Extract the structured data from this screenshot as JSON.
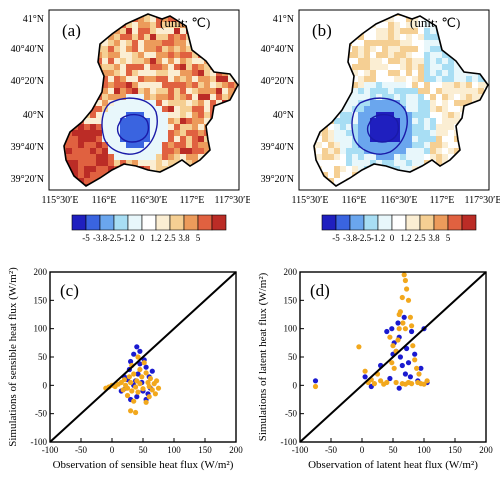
{
  "colors": {
    "palette": [
      "#1f1fbf",
      "#3a64e0",
      "#6aa6ee",
      "#a8def4",
      "#e8f7fb",
      "#ffffff",
      "#fbeed3",
      "#f5cf93",
      "#ec9b5b",
      "#e06140",
      "#bb2c26"
    ],
    "obs_blue": "#1a1ad0",
    "obs_orange": "#f2a81d",
    "contour": "#1a1aa8"
  },
  "panels": {
    "a": {
      "label": "(a)",
      "unit": "(unit: ℃)"
    },
    "b": {
      "label": "(b)",
      "unit": "(unit: ℃)"
    },
    "c": {
      "label": "(c)"
    },
    "d": {
      "label": "(d)"
    }
  },
  "map_axes": {
    "lat_labels": [
      "41°N",
      "40°40′N",
      "40°20′N",
      "40°N",
      "39°40′N",
      "39°20′N"
    ],
    "lon_labels": [
      "115°30′E",
      "116°E",
      "116°30′E",
      "117°E",
      "117°30′E"
    ]
  },
  "colorbar": {
    "ticks": [
      "-5",
      "-3.8",
      "-2.5",
      "-1.2",
      "0",
      "1.2",
      "2.5",
      "3.8",
      "5"
    ]
  },
  "chart_data": [
    {
      "type": "scatter",
      "panel": "c",
      "xlabel": "Observation of sensible heat flux (W/m²)",
      "ylabel": "Simulations of sensible heat flux (W/m²)",
      "xlim": [
        -100,
        200
      ],
      "ylim": [
        -100,
        200
      ],
      "xticks": [
        -100,
        -50,
        0,
        50,
        100,
        150,
        200
      ],
      "yticks": [
        -100,
        -50,
        0,
        50,
        100,
        150,
        200
      ],
      "diagonal": true,
      "series": [
        {
          "color": "obs_blue",
          "points": [
            [
              40,
              68
            ],
            [
              45,
              60
            ],
            [
              35,
              55
            ],
            [
              52,
              45
            ],
            [
              30,
              42
            ],
            [
              55,
              32
            ],
            [
              28,
              28
            ],
            [
              42,
              20
            ],
            [
              60,
              15
            ],
            [
              25,
              10
            ],
            [
              48,
              5
            ],
            [
              35,
              0
            ],
            [
              22,
              -5
            ],
            [
              50,
              -10
            ],
            [
              58,
              -15
            ],
            [
              40,
              -20
            ],
            [
              30,
              -25
            ],
            [
              15,
              -10
            ],
            [
              65,
              25
            ],
            [
              45,
              38
            ],
            [
              62,
              -5
            ],
            [
              20,
              15
            ],
            [
              38,
              8
            ],
            [
              55,
              -25
            ]
          ]
        },
        {
          "color": "obs_orange",
          "points": [
            [
              -10,
              -5
            ],
            [
              -5,
              -3
            ],
            [
              0,
              0
            ],
            [
              5,
              -2
            ],
            [
              10,
              2
            ],
            [
              15,
              5
            ],
            [
              18,
              -8
            ],
            [
              20,
              10
            ],
            [
              22,
              0
            ],
            [
              25,
              -5
            ],
            [
              28,
              15
            ],
            [
              30,
              5
            ],
            [
              32,
              -10
            ],
            [
              35,
              20
            ],
            [
              38,
              -3
            ],
            [
              40,
              8
            ],
            [
              42,
              -12
            ],
            [
              45,
              3
            ],
            [
              48,
              15
            ],
            [
              50,
              -6
            ],
            [
              52,
              40
            ],
            [
              55,
              22
            ],
            [
              58,
              5
            ],
            [
              60,
              -2
            ],
            [
              62,
              12
            ],
            [
              65,
              -8
            ],
            [
              68,
              3
            ],
            [
              70,
              -15
            ],
            [
              72,
              8
            ],
            [
              75,
              -5
            ],
            [
              30,
              -45
            ],
            [
              38,
              -48
            ],
            [
              32,
              35
            ],
            [
              45,
              28
            ],
            [
              25,
              -18
            ],
            [
              55,
              -30
            ],
            [
              42,
              50
            ],
            [
              60,
              -20
            ],
            [
              35,
              -28
            ]
          ]
        }
      ]
    },
    {
      "type": "scatter",
      "panel": "d",
      "xlabel": "Observation of latent heat flux (W/m²)",
      "ylabel": "Simulations of latent heat flux (W/m²)",
      "xlim": [
        -100,
        200
      ],
      "ylim": [
        -100,
        200
      ],
      "xticks": [
        -100,
        -50,
        0,
        50,
        100,
        150,
        200
      ],
      "yticks": [
        -100,
        -50,
        0,
        50,
        100,
        150,
        200
      ],
      "diagonal": true,
      "series": [
        {
          "color": "obs_blue",
          "points": [
            [
              -75,
              8
            ],
            [
              5,
              15
            ],
            [
              15,
              -2
            ],
            [
              30,
              35
            ],
            [
              40,
              95
            ],
            [
              48,
              100
            ],
            [
              50,
              55
            ],
            [
              52,
              75
            ],
            [
              55,
              60
            ],
            [
              58,
              110
            ],
            [
              60,
              85
            ],
            [
              62,
              50
            ],
            [
              65,
              35
            ],
            [
              68,
              120
            ],
            [
              70,
              20
            ],
            [
              72,
              65
            ],
            [
              75,
              40
            ],
            [
              78,
              15
            ],
            [
              80,
              95
            ],
            [
              85,
              55
            ],
            [
              90,
              8
            ],
            [
              95,
              30
            ],
            [
              100,
              100
            ],
            [
              105,
              5
            ],
            [
              60,
              -5
            ],
            [
              45,
              12
            ]
          ]
        },
        {
          "color": "obs_orange",
          "points": [
            [
              -75,
              -2
            ],
            [
              -5,
              68
            ],
            [
              5,
              25
            ],
            [
              10,
              5
            ],
            [
              15,
              10
            ],
            [
              20,
              3
            ],
            [
              25,
              20
            ],
            [
              30,
              8
            ],
            [
              35,
              2
            ],
            [
              40,
              5
            ],
            [
              45,
              85
            ],
            [
              48,
              40
            ],
            [
              50,
              70
            ],
            [
              52,
              30
            ],
            [
              55,
              60
            ],
            [
              58,
              80
            ],
            [
              60,
              100
            ],
            [
              62,
              130
            ],
            [
              65,
              155
            ],
            [
              68,
              195
            ],
            [
              70,
              185
            ],
            [
              72,
              170
            ],
            [
              75,
              150
            ],
            [
              78,
              120
            ],
            [
              80,
              105
            ],
            [
              82,
              70
            ],
            [
              85,
              45
            ],
            [
              88,
              30
            ],
            [
              90,
              5
            ],
            [
              92,
              20
            ],
            [
              95,
              3
            ],
            [
              100,
              2
            ],
            [
              105,
              8
            ],
            [
              55,
              5
            ],
            [
              65,
              3
            ],
            [
              70,
              2
            ],
            [
              75,
              5
            ],
            [
              80,
              3
            ],
            [
              60,
              125
            ],
            [
              66,
              110
            ],
            [
              70,
              100
            ]
          ]
        }
      ]
    }
  ]
}
